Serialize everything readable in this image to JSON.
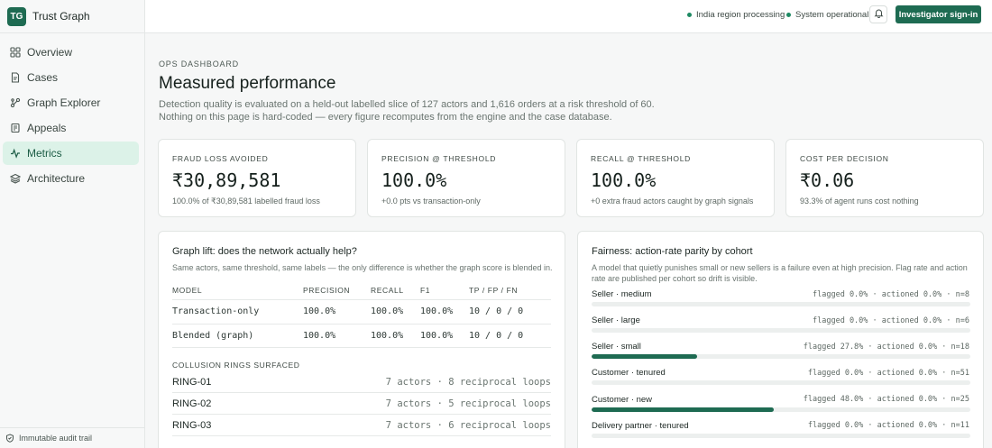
{
  "brand": {
    "logo": "TG",
    "name": "Trust Graph"
  },
  "sidebar": {
    "items": [
      {
        "label": "Overview",
        "icon": "grid-icon",
        "active": false
      },
      {
        "label": "Cases",
        "icon": "document-icon",
        "active": false
      },
      {
        "label": "Graph Explorer",
        "icon": "graph-icon",
        "active": false
      },
      {
        "label": "Appeals",
        "icon": "appeal-icon",
        "active": false
      },
      {
        "label": "Metrics",
        "icon": "pulse-icon",
        "active": true
      },
      {
        "label": "Architecture",
        "icon": "layers-icon",
        "active": false
      }
    ],
    "footer": "Immutable audit trail"
  },
  "header": {
    "status_region": "India region processing",
    "status_system": "System operational",
    "signin_label": "Investigator sign-in",
    "status_color": "#1e8a63",
    "accent": "#1e6b52"
  },
  "main": {
    "eyebrow": "OPS DASHBOARD",
    "title": "Measured performance",
    "description": "Detection quality is evaluated on a held-out labelled slice of 127 actors and 1,616 orders at a risk threshold of 60. Nothing on this page is hard-coded — every figure recomputes from the engine and the case database."
  },
  "kpis": [
    {
      "label": "FRAUD LOSS AVOIDED",
      "value": "₹30,89,581",
      "sub": "100.0% of ₹30,89,581 labelled fraud loss"
    },
    {
      "label": "PRECISION @ THRESHOLD",
      "value": "100.0%",
      "sub": "+0.0 pts vs transaction-only"
    },
    {
      "label": "RECALL @ THRESHOLD",
      "value": "100.0%",
      "sub": "+0 extra fraud actors caught by graph signals"
    },
    {
      "label": "COST PER DECISION",
      "value": "₹0.06",
      "sub": "93.3% of agent runs cost nothing"
    }
  ],
  "graph_lift": {
    "title": "Graph lift: does the network actually help?",
    "subtitle": "Same actors, same threshold, same labels — the only difference is whether the graph score is blended in.",
    "columns": [
      "MODEL",
      "PRECISION",
      "RECALL",
      "F1",
      "TP / FP / FN"
    ],
    "rows": [
      [
        "Transaction-only",
        "100.0%",
        "100.0%",
        "100.0%",
        "10 / 0 / 0"
      ],
      [
        "Blended (graph)",
        "100.0%",
        "100.0%",
        "100.0%",
        "10 / 0 / 0"
      ]
    ],
    "rings_heading": "COLLUSION RINGS SURFACED",
    "rings": [
      {
        "label": "RING-01",
        "detail": "7 actors · 8 reciprocal loops"
      },
      {
        "label": "RING-02",
        "detail": "7 actors · 5 reciprocal loops"
      },
      {
        "label": "RING-03",
        "detail": "7 actors · 6 reciprocal loops"
      }
    ]
  },
  "fairness": {
    "title": "Fairness: action-rate parity by cohort",
    "subtitle": "A model that quietly punishes small or new sellers is a failure even at high precision. Flag rate and action rate are published per cohort so drift is visible.",
    "cohorts": [
      {
        "name": "Seller · medium",
        "stats": "flagged 0.0% · actioned 0.0% · n=8",
        "flagged_pct": 0.0
      },
      {
        "name": "Seller · large",
        "stats": "flagged 0.0% · actioned 0.0% · n=6",
        "flagged_pct": 0.0
      },
      {
        "name": "Seller · small",
        "stats": "flagged 27.8% · actioned 0.0% · n=18",
        "flagged_pct": 27.8
      },
      {
        "name": "Customer · tenured",
        "stats": "flagged 0.0% · actioned 0.0% · n=51",
        "flagged_pct": 0.0
      },
      {
        "name": "Customer · new",
        "stats": "flagged 48.0% · actioned 0.0% · n=25",
        "flagged_pct": 48.0
      },
      {
        "name": "Delivery partner · tenured",
        "stats": "flagged 0.0% · actioned 0.0% · n=11",
        "flagged_pct": 0.0
      }
    ]
  }
}
